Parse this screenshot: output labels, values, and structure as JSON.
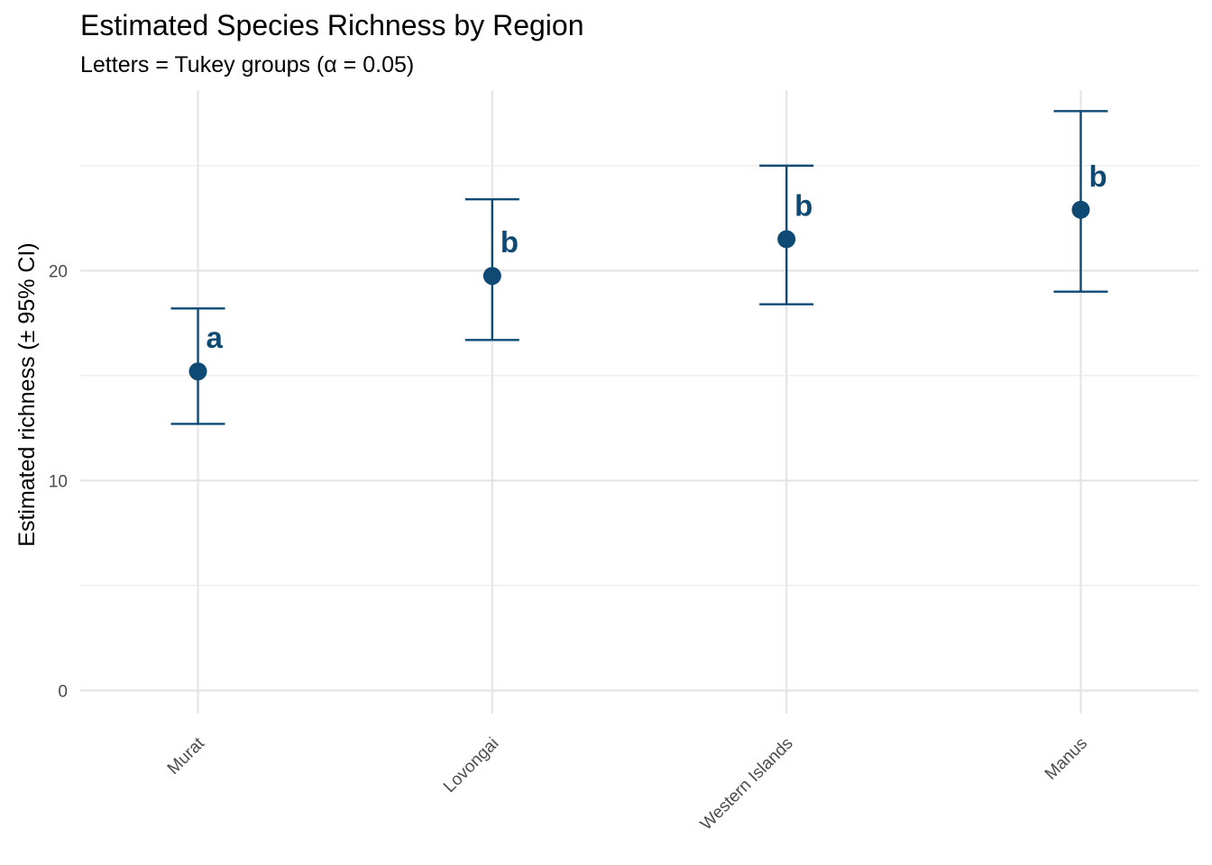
{
  "chart_data": {
    "type": "scatter",
    "title": "Estimated Species Richness by Region",
    "subtitle": "Letters = Tukey groups (α = 0.05)",
    "xlabel": "",
    "ylabel": "Estimated richness (± 95% CI)",
    "categories": [
      "Murat",
      "Lovongai",
      "Western Islands",
      "Manus"
    ],
    "estimate": [
      15.2,
      19.75,
      21.5,
      22.9
    ],
    "ci_lower": [
      12.7,
      16.7,
      18.4,
      19.0
    ],
    "ci_upper": [
      18.2,
      23.4,
      25.0,
      27.6
    ],
    "groups": [
      "a",
      "b",
      "b",
      "b"
    ],
    "yticks": [
      0,
      10,
      20
    ],
    "ylim": [
      -1.1,
      28.6
    ],
    "grid": true,
    "legend": "none",
    "color": "#0e4a73"
  }
}
